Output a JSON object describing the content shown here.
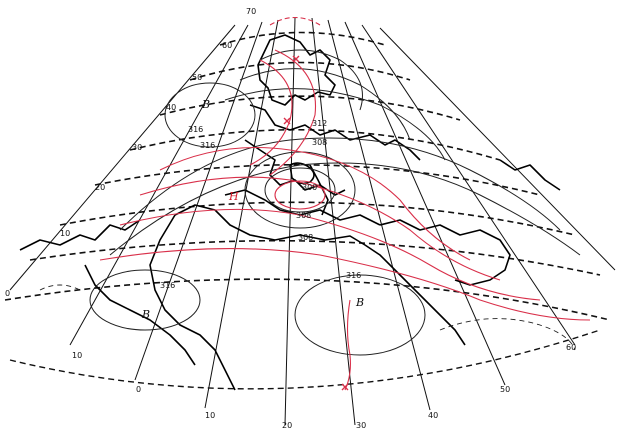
{
  "map": {
    "meridian_labels": [
      "0",
      "10",
      "20",
      "30",
      "40",
      "50",
      "60",
      "70"
    ],
    "parallel_labels": [
      "70",
      "60",
      "50",
      "40",
      "30",
      "20",
      "10",
      "0"
    ],
    "bottom_labels": [
      "10",
      "0",
      "10",
      "20",
      "30",
      "40",
      "50",
      "60"
    ],
    "contour_labels": [
      "316",
      "316",
      "312",
      "308",
      "300",
      "308",
      "308",
      "316",
      "316"
    ],
    "pressure_centers": {
      "high_1": "B",
      "high_2": "B",
      "high_3": "B",
      "low": "H"
    },
    "colors": {
      "geopotential_lines": "#222222",
      "thickness_lines": "#d9304a",
      "coastline": "#000000"
    }
  }
}
